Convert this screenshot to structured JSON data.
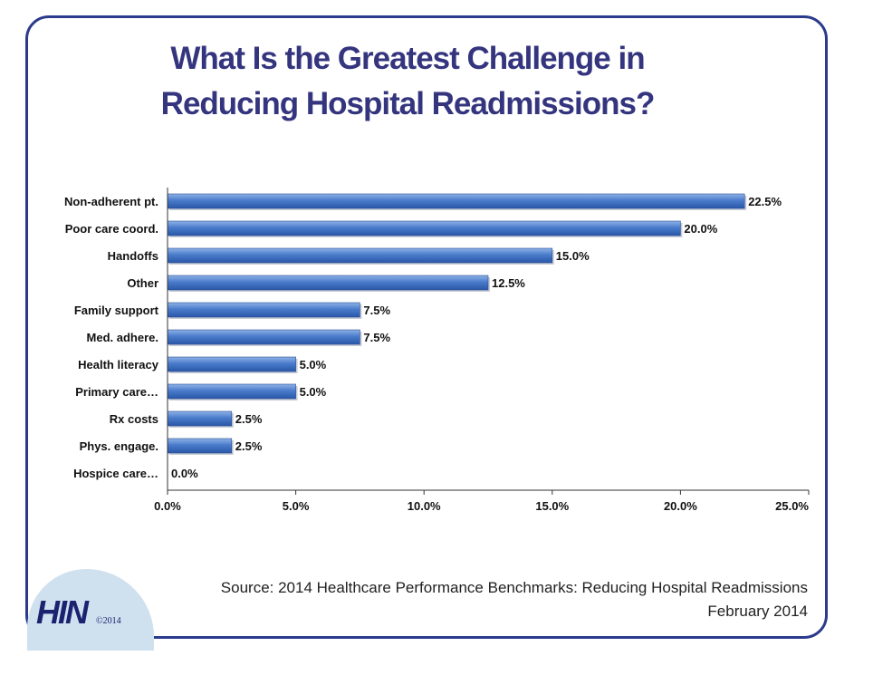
{
  "title_lines": [
    "What Is the Greatest Challenge in",
    "Reducing Hospital Readmissions?"
  ],
  "chart_data": {
    "type": "bar",
    "orientation": "horizontal",
    "categories": [
      "Non-adherent pt.",
      "Poor care coord.",
      "Handoffs",
      "Other",
      "Family support",
      "Med. adhere.",
      "Health literacy",
      "Primary care…",
      "Rx costs",
      "Phys. engage.",
      "Hospice care…"
    ],
    "values": [
      22.5,
      20.0,
      15.0,
      12.5,
      7.5,
      7.5,
      5.0,
      5.0,
      2.5,
      2.5,
      0.0
    ],
    "value_labels": [
      "22.5%",
      "20.0%",
      "15.0%",
      "12.5%",
      "7.5%",
      "7.5%",
      "5.0%",
      "5.0%",
      "2.5%",
      "2.5%",
      "0.0%"
    ],
    "x_ticks": [
      0,
      5,
      10,
      15,
      20,
      25
    ],
    "x_tick_labels": [
      "0.0%",
      "5.0%",
      "10.0%",
      "15.0%",
      "20.0%",
      "25.0%"
    ],
    "xlim": [
      0,
      25
    ],
    "grid": false,
    "bar_color": "#3f6fc0"
  },
  "source_lines": [
    "Source: 2014 Healthcare Performance Benchmarks: Reducing Hospital Readmissions",
    "February 2014"
  ],
  "logo": {
    "text": "HIN",
    "copyright": "©2014"
  }
}
